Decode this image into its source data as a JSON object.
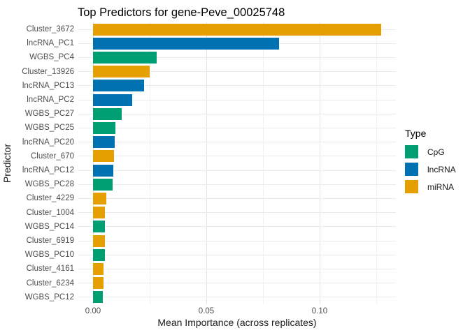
{
  "chart_data": {
    "type": "bar",
    "orientation": "horizontal",
    "title": "Top Predictors for gene-Peve_00025748",
    "xlabel": "Mean Importance (across replicates)",
    "ylabel": "Predictor",
    "xlim": [
      0,
      0.131
    ],
    "x_major_ticks": [
      0,
      0.05,
      0.1
    ],
    "x_major_tick_labels": [
      "0.00",
      "0.05",
      "0.10"
    ],
    "x_minor_ticks": [
      0.025,
      0.075,
      0.125
    ],
    "grid": {
      "vertical_major": true,
      "vertical_minor": true,
      "horizontal_major": true
    },
    "legend": {
      "title": "Type",
      "position": "right",
      "entries": [
        {
          "label": "CpG",
          "color": "#009E73"
        },
        {
          "label": "lncRNA",
          "color": "#0072B2"
        },
        {
          "label": "miRNA",
          "color": "#E69F00"
        }
      ]
    },
    "categories": [
      "Cluster_3672",
      "lncRNA_PC1",
      "WGBS_PC4",
      "Cluster_13926",
      "lncRNA_PC13",
      "lncRNA_PC2",
      "WGBS_PC27",
      "WGBS_PC25",
      "lncRNA_PC20",
      "Cluster_670",
      "lncRNA_PC12",
      "WGBS_PC28",
      "Cluster_4229",
      "Cluster_1004",
      "WGBS_PC14",
      "Cluster_6919",
      "WGBS_PC10",
      "Cluster_4161",
      "Cluster_6234",
      "WGBS_PC12"
    ],
    "values": [
      0.127,
      0.082,
      0.028,
      0.025,
      0.0225,
      0.0173,
      0.0127,
      0.01,
      0.0096,
      0.0093,
      0.009,
      0.0086,
      0.0059,
      0.0053,
      0.0053,
      0.0052,
      0.0052,
      0.0045,
      0.0045,
      0.0044
    ],
    "bar_types": [
      "miRNA",
      "lncRNA",
      "CpG",
      "miRNA",
      "lncRNA",
      "lncRNA",
      "CpG",
      "CpG",
      "lncRNA",
      "miRNA",
      "lncRNA",
      "CpG",
      "miRNA",
      "miRNA",
      "CpG",
      "miRNA",
      "CpG",
      "miRNA",
      "miRNA",
      "CpG"
    ]
  }
}
